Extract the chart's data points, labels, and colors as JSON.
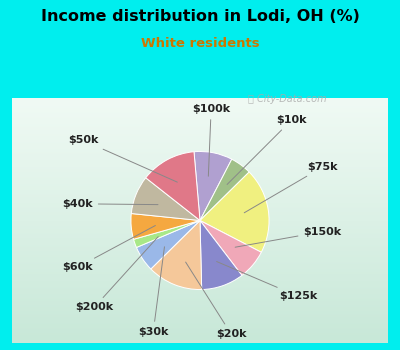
{
  "title": "Income distribution in Lodi, OH (%)",
  "subtitle": "White residents",
  "title_color": "#000000",
  "subtitle_color": "#cc7700",
  "background_outer": "#00eeee",
  "background_inner_color1": "#d0ede0",
  "background_inner_color2": "#e8f8f0",
  "labels": [
    "$100k",
    "$10k",
    "$75k",
    "$150k",
    "$125k",
    "$20k",
    "$30k",
    "$200k",
    "$60k",
    "$40k",
    "$50k"
  ],
  "values": [
    9,
    5,
    20,
    7,
    10,
    13,
    6,
    2,
    6,
    9,
    13
  ],
  "colors": [
    "#b0a0d0",
    "#a0c088",
    "#f0f080",
    "#f0a8b8",
    "#8888cc",
    "#f5c89a",
    "#9ab8e8",
    "#a8e888",
    "#f5a840",
    "#c0b8a0",
    "#e07888"
  ],
  "wedge_label_fontsize": 8,
  "startangle": 95
}
